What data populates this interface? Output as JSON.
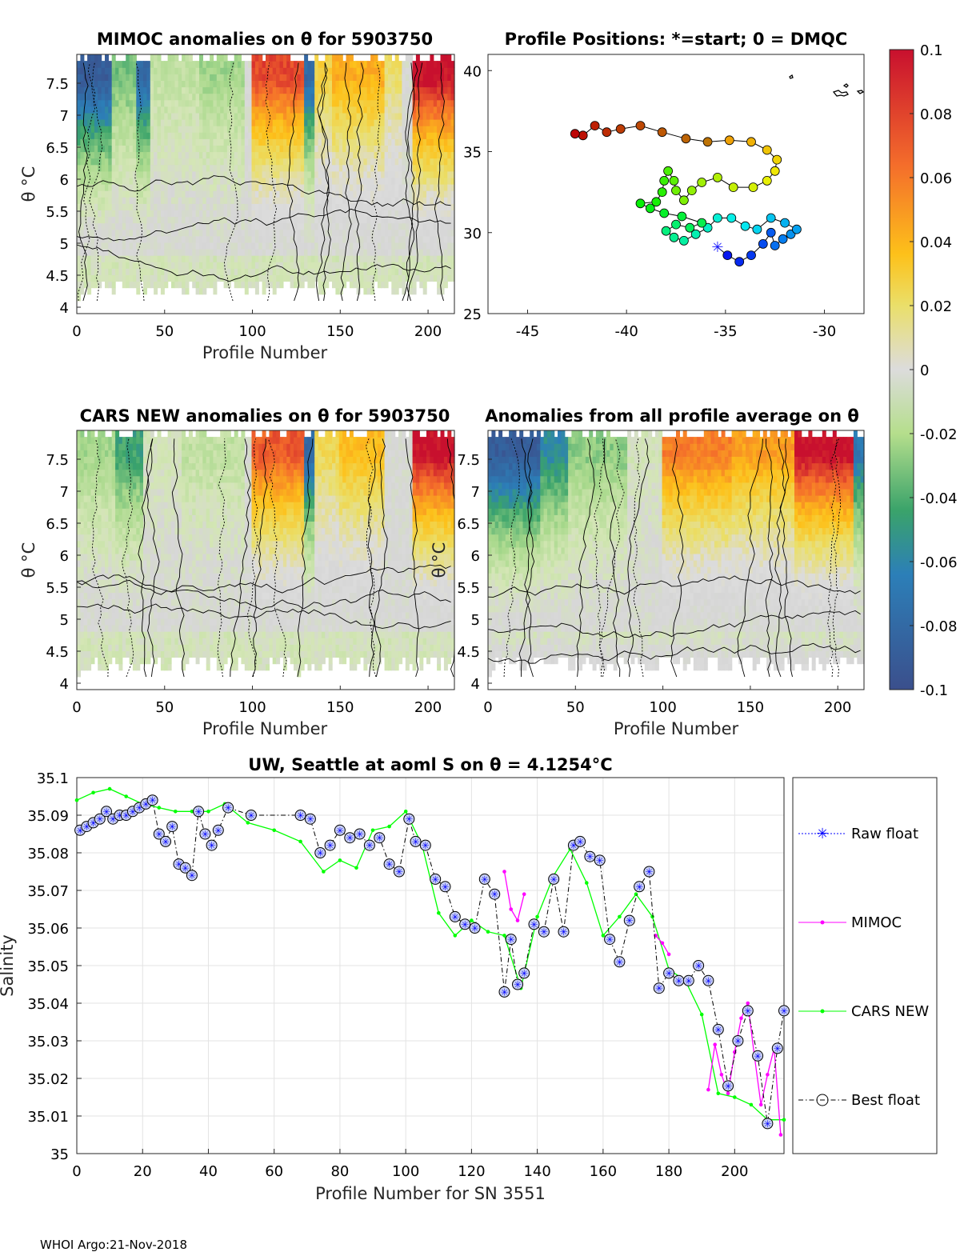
{
  "colors": {
    "raw_float": "#0000ff",
    "mimoc": "#ff00ff",
    "cars_new": "#00ff00",
    "best_float": "#000000",
    "grid": "#e3e3e3"
  },
  "colorbar": {
    "range": [
      -0.1,
      0.1
    ],
    "ticks": [
      "0.1",
      "0.08",
      "0.06",
      "0.04",
      "0.02",
      "0",
      "-0.02",
      "-0.04",
      "-0.06",
      "-0.08",
      "-0.1"
    ],
    "stops": [
      "#d7191c",
      "#fdae61",
      "#ffe21f",
      "#dcdcdc",
      "#a6d96a",
      "#2e9e5b",
      "#3a5fcd",
      "#3b4f8c"
    ]
  },
  "footer": "WHOI Argo:21-Nov-2018",
  "chart_data": [
    {
      "id": "mimoc",
      "type": "heatmap",
      "title": "MIMOC anomalies on θ  for 5903750",
      "xlabel": "Profile Number",
      "ylabel": "θ °C",
      "xlim": [
        0,
        215
      ],
      "ylim": [
        3.9,
        7.95
      ],
      "xticks": [
        "0",
        "50",
        "100",
        "150",
        "200"
      ],
      "yticks": [
        "4",
        "4.5",
        "5",
        "5.5",
        "6",
        "6.5",
        "7",
        "7.5"
      ],
      "top_band_anomalies": [
        {
          "from": 0,
          "to": 20,
          "value": -0.09
        },
        {
          "from": 20,
          "to": 34,
          "value": -0.04
        },
        {
          "from": 34,
          "to": 41,
          "value": -0.08
        },
        {
          "from": 41,
          "to": 70,
          "value": -0.02
        },
        {
          "from": 70,
          "to": 96,
          "value": -0.03
        },
        {
          "from": 96,
          "to": 100,
          "value": 0.0
        },
        {
          "from": 100,
          "to": 130,
          "value": 0.085
        },
        {
          "from": 130,
          "to": 135,
          "value": -0.08
        },
        {
          "from": 135,
          "to": 146,
          "value": 0.04
        },
        {
          "from": 146,
          "to": 175,
          "value": 0.055
        },
        {
          "from": 175,
          "to": 185,
          "value": 0.03
        },
        {
          "from": 185,
          "to": 192,
          "value": 0.0
        },
        {
          "from": 192,
          "to": 215,
          "value": 0.1
        }
      ]
    },
    {
      "id": "positions",
      "type": "scatter",
      "title": "Profile Positions: *=start; 0 = DMQC",
      "xlim": [
        -47,
        -28
      ],
      "ylim": [
        25,
        41
      ],
      "xticks": [
        "-45",
        "-40",
        "-35",
        "-30"
      ],
      "yticks": [
        "25",
        "30",
        "35",
        "40"
      ],
      "track": [
        {
          "lon": -35.4,
          "lat": 29.1
        },
        {
          "lon": -34.9,
          "lat": 28.6
        },
        {
          "lon": -34.3,
          "lat": 28.2
        },
        {
          "lon": -33.7,
          "lat": 28.6
        },
        {
          "lon": -33.1,
          "lat": 29.3
        },
        {
          "lon": -32.7,
          "lat": 30.0
        },
        {
          "lon": -32.5,
          "lat": 29.2
        },
        {
          "lon": -32.1,
          "lat": 29.6
        },
        {
          "lon": -31.7,
          "lat": 29.9
        },
        {
          "lon": -31.4,
          "lat": 30.2
        },
        {
          "lon": -32.0,
          "lat": 30.6
        },
        {
          "lon": -32.7,
          "lat": 30.9
        },
        {
          "lon": -33.4,
          "lat": 30.2
        },
        {
          "lon": -34.0,
          "lat": 30.4
        },
        {
          "lon": -34.7,
          "lat": 30.9
        },
        {
          "lon": -35.4,
          "lat": 30.9
        },
        {
          "lon": -35.9,
          "lat": 30.3
        },
        {
          "lon": -36.5,
          "lat": 29.9
        },
        {
          "lon": -37.1,
          "lat": 29.5
        },
        {
          "lon": -37.6,
          "lat": 29.7
        },
        {
          "lon": -38.0,
          "lat": 30.1
        },
        {
          "lon": -37.5,
          "lat": 30.5
        },
        {
          "lon": -36.8,
          "lat": 30.3
        },
        {
          "lon": -36.2,
          "lat": 30.6
        },
        {
          "lon": -37.2,
          "lat": 31.0
        },
        {
          "lon": -38.1,
          "lat": 31.2
        },
        {
          "lon": -38.8,
          "lat": 31.5
        },
        {
          "lon": -39.3,
          "lat": 31.8
        },
        {
          "lon": -38.5,
          "lat": 31.9
        },
        {
          "lon": -38.2,
          "lat": 32.5
        },
        {
          "lon": -38.1,
          "lat": 33.2
        },
        {
          "lon": -37.9,
          "lat": 33.8
        },
        {
          "lon": -37.6,
          "lat": 33.2
        },
        {
          "lon": -37.5,
          "lat": 32.6
        },
        {
          "lon": -37.1,
          "lat": 32.0
        },
        {
          "lon": -36.7,
          "lat": 32.6
        },
        {
          "lon": -36.2,
          "lat": 33.1
        },
        {
          "lon": -35.4,
          "lat": 33.4
        },
        {
          "lon": -34.6,
          "lat": 32.8
        },
        {
          "lon": -33.6,
          "lat": 32.8
        },
        {
          "lon": -32.9,
          "lat": 33.2
        },
        {
          "lon": -32.5,
          "lat": 33.8
        },
        {
          "lon": -32.4,
          "lat": 34.5
        },
        {
          "lon": -32.9,
          "lat": 35.1
        },
        {
          "lon": -33.7,
          "lat": 35.6
        },
        {
          "lon": -34.8,
          "lat": 35.7
        },
        {
          "lon": -35.9,
          "lat": 35.6
        },
        {
          "lon": -37.0,
          "lat": 35.8
        },
        {
          "lon": -38.2,
          "lat": 36.2
        },
        {
          "lon": -39.3,
          "lat": 36.6
        },
        {
          "lon": -40.3,
          "lat": 36.4
        },
        {
          "lon": -41.0,
          "lat": 36.2
        },
        {
          "lon": -41.6,
          "lat": 36.6
        },
        {
          "lon": -42.2,
          "lat": 36.0
        },
        {
          "lon": -42.6,
          "lat": 36.1
        }
      ]
    },
    {
      "id": "cars",
      "type": "heatmap",
      "title": "CARS NEW anomalies on θ for 5903750",
      "xlabel": "Profile Number",
      "ylabel": "θ °C",
      "xlim": [
        0,
        215
      ],
      "ylim": [
        3.9,
        7.95
      ],
      "xticks": [
        "0",
        "50",
        "100",
        "150",
        "200"
      ],
      "yticks": [
        "4",
        "4.5",
        "5",
        "5.5",
        "6",
        "6.5",
        "7",
        "7.5"
      ],
      "top_band_anomalies": [
        {
          "from": 0,
          "to": 22,
          "value": -0.03
        },
        {
          "from": 22,
          "to": 38,
          "value": -0.05
        },
        {
          "from": 38,
          "to": 60,
          "value": -0.01
        },
        {
          "from": 60,
          "to": 96,
          "value": -0.02
        },
        {
          "from": 96,
          "to": 100,
          "value": 0.0
        },
        {
          "from": 100,
          "to": 130,
          "value": 0.08
        },
        {
          "from": 130,
          "to": 136,
          "value": -0.08
        },
        {
          "from": 136,
          "to": 150,
          "value": 0.035
        },
        {
          "from": 150,
          "to": 175,
          "value": 0.05
        },
        {
          "from": 175,
          "to": 192,
          "value": 0.0
        },
        {
          "from": 192,
          "to": 215,
          "value": 0.1
        }
      ]
    },
    {
      "id": "avg",
      "type": "heatmap",
      "title": "Anomalies from all profile average on θ",
      "xlabel": "Profile Number",
      "ylabel": "θ °C",
      "xlim": [
        0,
        215
      ],
      "ylim": [
        3.9,
        7.95
      ],
      "xticks": [
        "0",
        "50",
        "100",
        "150",
        "200"
      ],
      "yticks": [
        "4",
        "4.5",
        "5",
        "5.5",
        "6",
        "6.5",
        "7",
        "7.5"
      ],
      "top_band_anomalies": [
        {
          "from": 0,
          "to": 30,
          "value": -0.09
        },
        {
          "from": 30,
          "to": 45,
          "value": -0.06
        },
        {
          "from": 45,
          "to": 80,
          "value": -0.035
        },
        {
          "from": 80,
          "to": 100,
          "value": -0.01
        },
        {
          "from": 100,
          "to": 140,
          "value": 0.07
        },
        {
          "from": 140,
          "to": 175,
          "value": 0.06
        },
        {
          "from": 175,
          "to": 210,
          "value": 0.1
        },
        {
          "from": 210,
          "to": 215,
          "value": -0.07
        }
      ]
    },
    {
      "id": "salinity",
      "type": "line",
      "title": "UW, Seattle at aoml S on θ = 4.1254°C",
      "xlabel": "Profile Number for SN 3551",
      "ylabel": "Salinity",
      "xlim": [
        0,
        215
      ],
      "ylim": [
        35,
        35.1
      ],
      "xticks": [
        "0",
        "20",
        "40",
        "60",
        "80",
        "100",
        "120",
        "140",
        "160",
        "180",
        "200"
      ],
      "yticks": [
        "35",
        "35.01",
        "35.02",
        "35.03",
        "35.04",
        "35.05",
        "35.06",
        "35.07",
        "35.08",
        "35.09",
        "35.1"
      ],
      "legend": [
        "Raw float",
        "MIMOC",
        "CARS NEW",
        "Best float"
      ],
      "series": [
        {
          "name": "CARS NEW",
          "x": [
            0,
            5,
            10,
            15,
            20,
            25,
            30,
            35,
            40,
            45,
            52,
            60,
            68,
            75,
            80,
            85,
            90,
            95,
            100,
            105,
            110,
            115,
            120,
            125,
            130,
            135,
            140,
            145,
            150,
            155,
            160,
            165,
            170,
            175,
            180,
            185,
            190,
            195,
            200,
            205,
            210,
            215
          ],
          "y": [
            35.094,
            35.096,
            35.097,
            35.095,
            35.093,
            35.092,
            35.091,
            35.091,
            35.091,
            35.093,
            35.088,
            35.086,
            35.083,
            35.075,
            35.078,
            35.076,
            35.086,
            35.087,
            35.091,
            35.082,
            35.064,
            35.058,
            35.062,
            35.059,
            35.058,
            35.044,
            35.063,
            35.074,
            35.081,
            35.072,
            35.058,
            35.063,
            35.069,
            35.063,
            35.049,
            35.046,
            35.037,
            35.016,
            35.015,
            35.013,
            35.009,
            35.009
          ]
        },
        {
          "name": "MIMOC",
          "x": [
            130,
            132,
            134,
            136,
            176,
            178,
            180,
            192,
            194,
            196,
            198,
            200,
            202,
            204,
            206,
            208,
            210,
            212,
            214
          ],
          "y": [
            35.075,
            35.065,
            35.062,
            35.069,
            35.058,
            35.056,
            35.053,
            35.017,
            35.029,
            35.021,
            35.016,
            35.027,
            35.036,
            35.04,
            35.026,
            35.013,
            35.021,
            35.028,
            35.005
          ]
        },
        {
          "name": "Best float",
          "x": [
            1,
            3,
            5,
            7,
            9,
            11,
            13,
            15,
            17,
            19,
            21,
            23,
            25,
            27,
            29,
            31,
            33,
            35,
            37,
            39,
            41,
            43,
            46,
            53,
            68,
            71,
            74,
            77,
            80,
            83,
            86,
            89,
            92,
            95,
            98,
            101,
            103,
            106,
            109,
            112,
            115,
            118,
            121,
            124,
            127,
            130,
            132,
            134,
            136,
            139,
            142,
            145,
            148,
            151,
            153,
            156,
            159,
            162,
            165,
            168,
            171,
            174,
            177,
            180,
            183,
            186,
            189,
            192,
            195,
            198,
            201,
            204,
            207,
            210,
            213,
            215
          ],
          "y": [
            35.086,
            35.087,
            35.088,
            35.089,
            35.091,
            35.089,
            35.09,
            35.09,
            35.091,
            35.092,
            35.093,
            35.094,
            35.085,
            35.083,
            35.087,
            35.077,
            35.076,
            35.074,
            35.091,
            35.085,
            35.082,
            35.086,
            35.092,
            35.09,
            35.09,
            35.089,
            35.08,
            35.082,
            35.086,
            35.084,
            35.085,
            35.082,
            35.084,
            35.077,
            35.075,
            35.089,
            35.083,
            35.082,
            35.073,
            35.071,
            35.063,
            35.061,
            35.06,
            35.073,
            35.069,
            35.043,
            35.057,
            35.045,
            35.048,
            35.061,
            35.059,
            35.073,
            35.059,
            35.082,
            35.083,
            35.079,
            35.078,
            35.057,
            35.051,
            35.062,
            35.071,
            35.075,
            35.044,
            35.048,
            35.046,
            35.046,
            35.05,
            35.046,
            35.033,
            35.018,
            35.03,
            35.038,
            35.026,
            35.008,
            35.028,
            35.038
          ]
        }
      ]
    }
  ]
}
